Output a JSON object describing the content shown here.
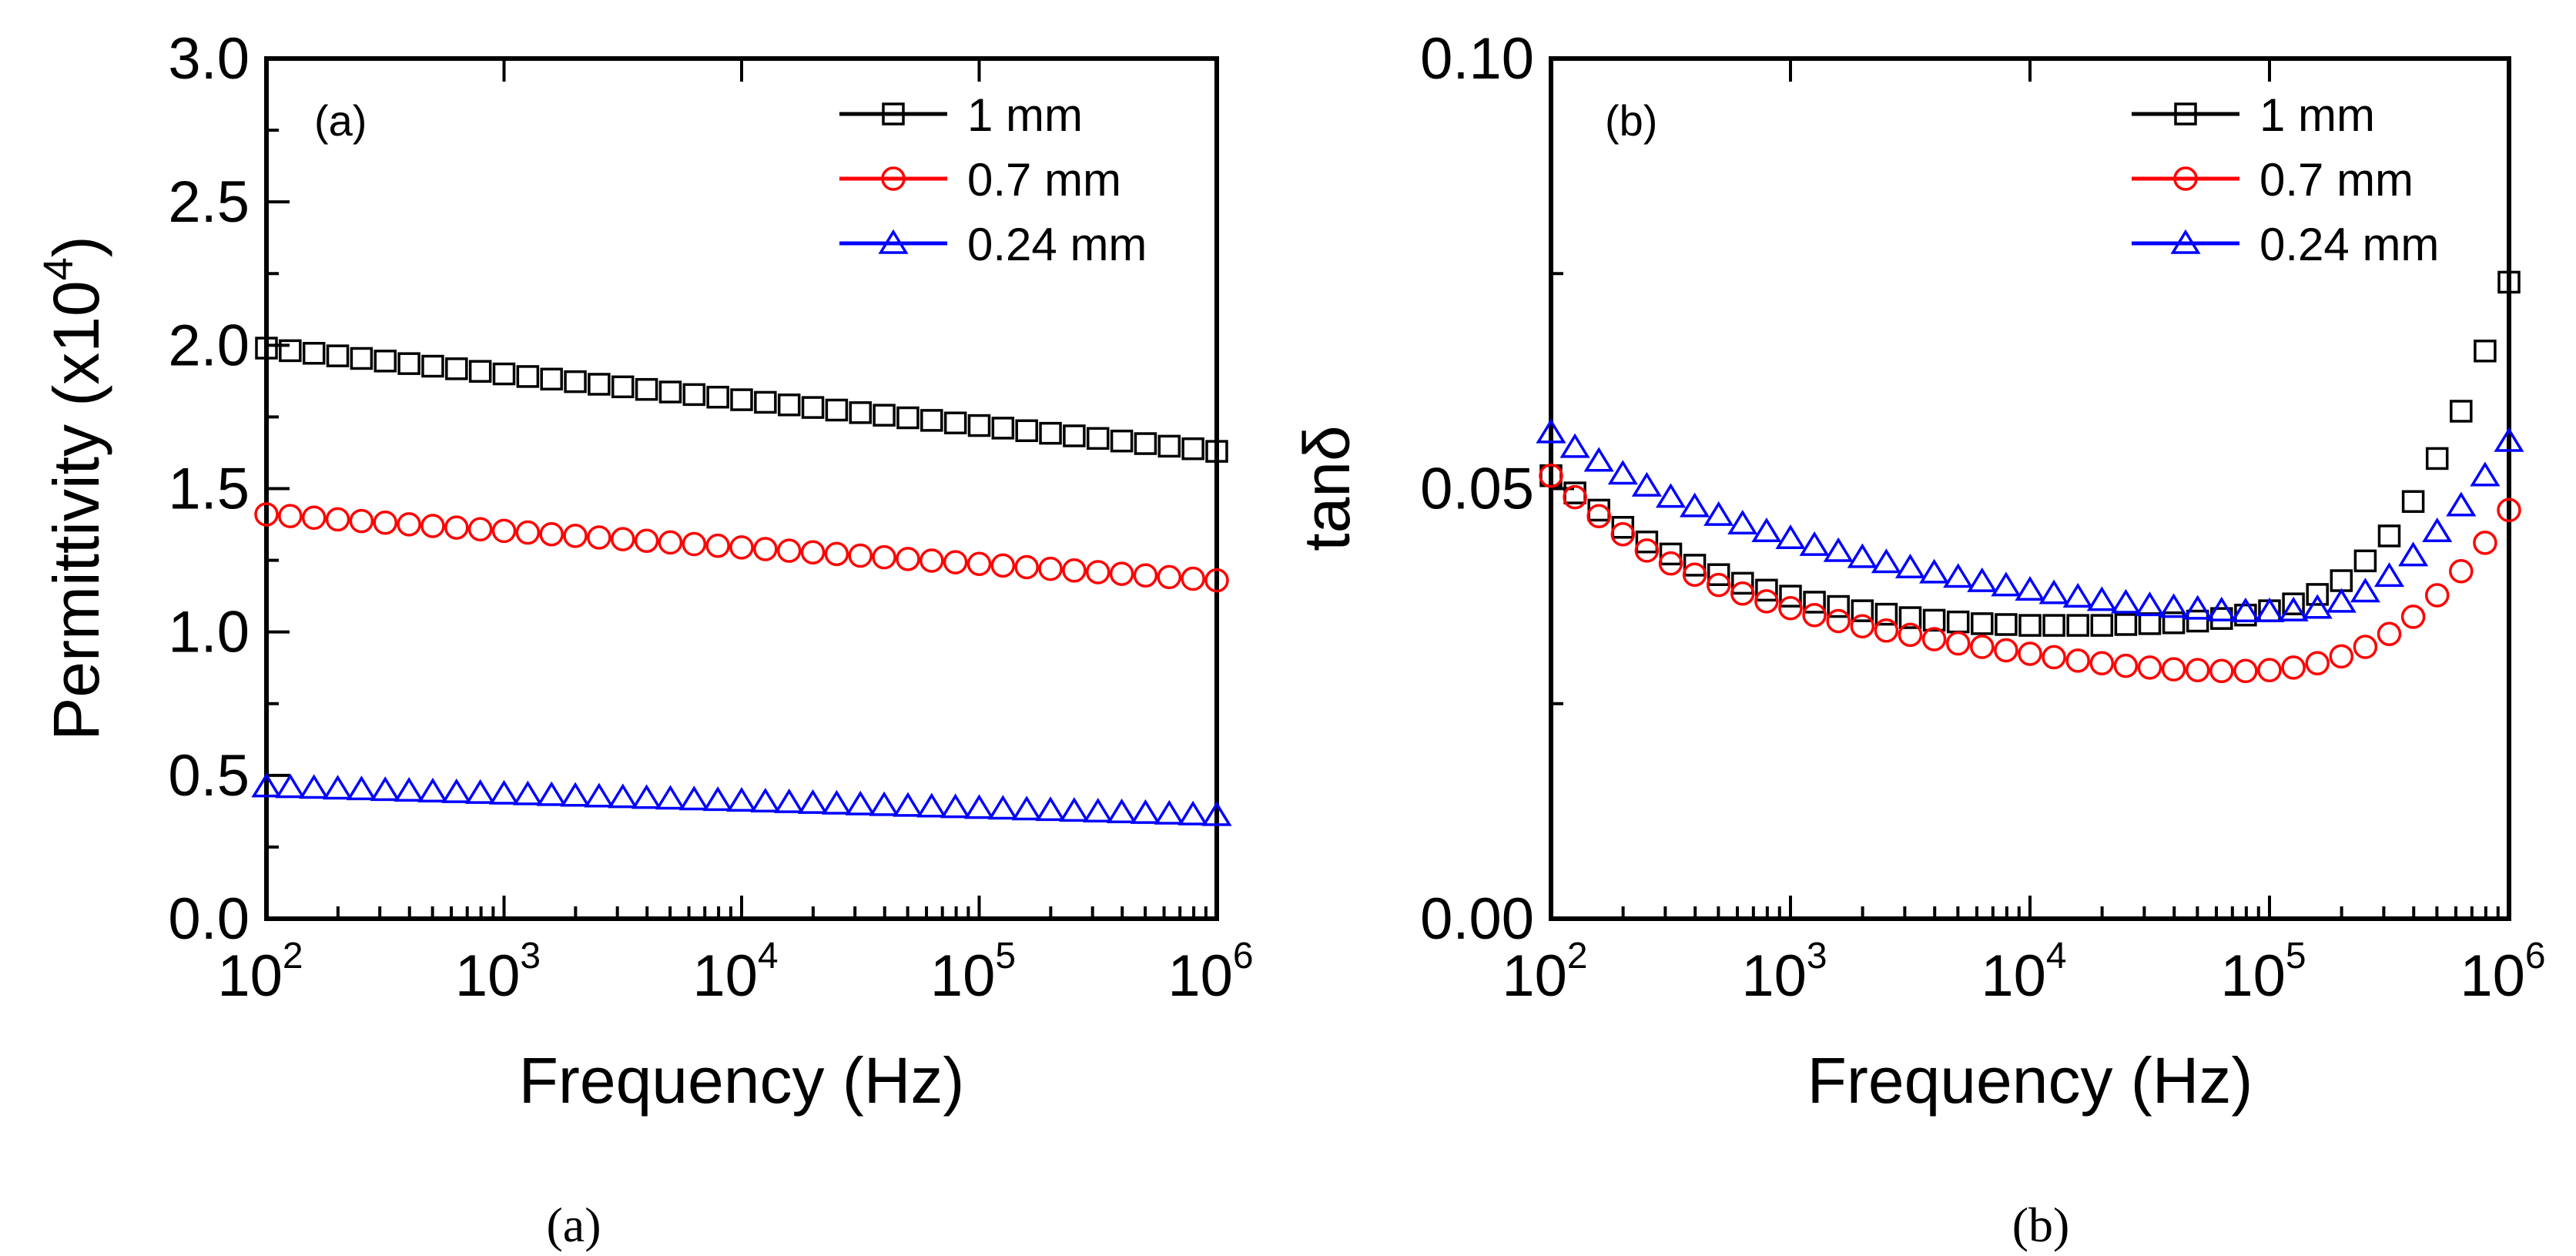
{
  "chart_data": [
    {
      "type": "scatter",
      "panel_label": "(a)",
      "caption": "(a)",
      "xlabel": "Frequency (Hz)",
      "x_scale": "log",
      "xlim": [
        100,
        1000000
      ],
      "x_ticks": [
        {
          "base": "10",
          "exp": "2"
        },
        {
          "base": "10",
          "exp": "3"
        },
        {
          "base": "10",
          "exp": "4"
        },
        {
          "base": "10",
          "exp": "5"
        },
        {
          "base": "10",
          "exp": "6"
        }
      ],
      "ylabel": "Permittivity (x10",
      "ylabel_exp": "4",
      "ylabel_close": ")",
      "ylim": [
        0,
        3.0
      ],
      "y_ticks": [
        "0.0",
        "0.5",
        "1.0",
        "1.5",
        "2.0",
        "2.5",
        "3.0"
      ],
      "y_tick_values": [
        0,
        0.5,
        1.0,
        1.5,
        2.0,
        2.5,
        3.0
      ],
      "legend_position": "top-right",
      "series": [
        {
          "name": "1 mm",
          "color": "#000000",
          "marker": "square",
          "y_start": 1.99,
          "y_end": 1.63
        },
        {
          "name": "0.7 mm",
          "color": "#ff0000",
          "marker": "circle",
          "y_start": 1.41,
          "y_end": 1.18
        },
        {
          "name": "0.24 mm",
          "color": "#0000ff",
          "marker": "triangle",
          "y_start": 0.46,
          "y_end": 0.36
        }
      ]
    },
    {
      "type": "scatter",
      "panel_label": "(b)",
      "caption": "(b)",
      "xlabel": "Frequency (Hz)",
      "x_scale": "log",
      "xlim": [
        100,
        1000000
      ],
      "x_ticks": [
        {
          "base": "10",
          "exp": "2"
        },
        {
          "base": "10",
          "exp": "3"
        },
        {
          "base": "10",
          "exp": "4"
        },
        {
          "base": "10",
          "exp": "5"
        },
        {
          "base": "10",
          "exp": "6"
        }
      ],
      "ylabel": "tanδ",
      "ylim": [
        0,
        0.1
      ],
      "y_ticks": [
        "0.00",
        "0.05",
        "0.10"
      ],
      "y_tick_values": [
        0,
        0.05,
        0.1
      ],
      "legend_position": "top-right",
      "series": [
        {
          "name": "1 mm",
          "color": "#000000",
          "marker": "square",
          "x": [
            100,
            125.89,
            158.49,
            199.53,
            251.19,
            316.23,
            398.11,
            501.19,
            630.96,
            794.33,
            1000,
            1258.9,
            1584.9,
            1995.3,
            2511.9,
            3162.3,
            3981.1,
            5011.9,
            6309.6,
            7943.3,
            10000,
            12589,
            15849,
            19953,
            25119,
            31623,
            39811,
            50119,
            63096,
            79433,
            100000,
            125893,
            158489,
            199526,
            251189,
            316228,
            398107,
            501187,
            630957,
            794328,
            1000000
          ],
          "y": [
            0.0515,
            0.0495,
            0.0475,
            0.0455,
            0.0438,
            0.0424,
            0.0411,
            0.04,
            0.039,
            0.0382,
            0.0375,
            0.0368,
            0.0363,
            0.0358,
            0.0354,
            0.035,
            0.0347,
            0.0345,
            0.0343,
            0.0342,
            0.0341,
            0.0341,
            0.0341,
            0.0341,
            0.0342,
            0.0343,
            0.0344,
            0.0346,
            0.0349,
            0.0353,
            0.0358,
            0.0366,
            0.0377,
            0.0393,
            0.0416,
            0.0445,
            0.0485,
            0.0535,
            0.059,
            0.066,
            0.074
          ]
        },
        {
          "name": "0.7 mm",
          "color": "#ff0000",
          "marker": "circle",
          "x": [
            100,
            125.89,
            158.49,
            199.53,
            251.19,
            316.23,
            398.11,
            501.19,
            630.96,
            794.33,
            1000,
            1258.9,
            1584.9,
            1995.3,
            2511.9,
            3162.3,
            3981.1,
            5011.9,
            6309.6,
            7943.3,
            10000,
            12589,
            15849,
            19953,
            25119,
            31623,
            39811,
            50119,
            63096,
            79433,
            100000,
            125893,
            158489,
            199526,
            251189,
            316228,
            398107,
            501187,
            630957,
            794328,
            1000000
          ],
          "y": [
            0.0515,
            0.049,
            0.0468,
            0.0447,
            0.0428,
            0.0413,
            0.04,
            0.0388,
            0.0378,
            0.0369,
            0.0361,
            0.0353,
            0.0346,
            0.034,
            0.0335,
            0.033,
            0.0325,
            0.032,
            0.0316,
            0.0312,
            0.0308,
            0.0304,
            0.03,
            0.0297,
            0.0294,
            0.0292,
            0.029,
            0.0289,
            0.0288,
            0.0288,
            0.0289,
            0.0292,
            0.0297,
            0.0305,
            0.0316,
            0.0331,
            0.0351,
            0.0376,
            0.0404,
            0.0437,
            0.0475
          ]
        },
        {
          "name": "0.24 mm",
          "color": "#0000ff",
          "marker": "triangle",
          "x": [
            100,
            125.89,
            158.49,
            199.53,
            251.19,
            316.23,
            398.11,
            501.19,
            630.96,
            794.33,
            1000,
            1258.9,
            1584.9,
            1995.3,
            2511.9,
            3162.3,
            3981.1,
            5011.9,
            6309.6,
            7943.3,
            10000,
            12589,
            15849,
            19953,
            25119,
            31623,
            39811,
            50119,
            63096,
            79433,
            100000,
            125893,
            158489,
            199526,
            251189,
            316228,
            398107,
            501187,
            630957,
            794328,
            1000000
          ],
          "y": [
            0.0565,
            0.0548,
            0.0532,
            0.0517,
            0.0503,
            0.049,
            0.0479,
            0.0469,
            0.0459,
            0.045,
            0.0442,
            0.0434,
            0.0427,
            0.042,
            0.0414,
            0.0408,
            0.0402,
            0.0397,
            0.0392,
            0.0387,
            0.0382,
            0.0378,
            0.0374,
            0.037,
            0.0367,
            0.0364,
            0.0362,
            0.036,
            0.0358,
            0.0357,
            0.0357,
            0.0358,
            0.0361,
            0.0368,
            0.038,
            0.0398,
            0.0422,
            0.045,
            0.048,
            0.0515,
            0.0555
          ]
        }
      ]
    }
  ]
}
